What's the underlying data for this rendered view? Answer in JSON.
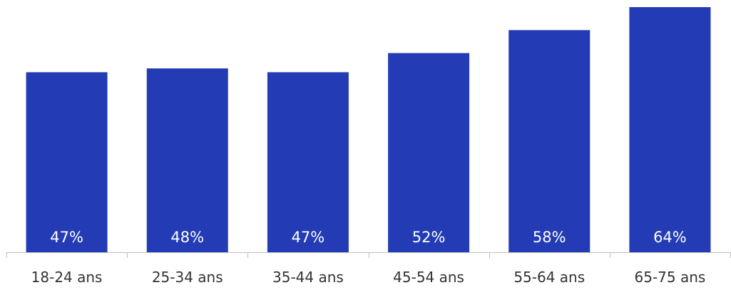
{
  "chart_data": {
    "type": "bar",
    "categories": [
      "18-24 ans",
      "25-34 ans",
      "35-44 ans",
      "45-54 ans",
      "55-64 ans",
      "65-75 ans"
    ],
    "values": [
      47,
      48,
      47,
      52,
      58,
      64
    ],
    "value_labels": [
      "47%",
      "48%",
      "47%",
      "52%",
      "58%",
      "64%"
    ],
    "title": "",
    "xlabel": "",
    "ylabel": "",
    "ylim": [
      0,
      64
    ],
    "grid": false,
    "legend": "none",
    "colors": {
      "bar": "#233BB5",
      "label": "#ffffff",
      "axis": "#bfbfbf",
      "tick_text": "#333333"
    }
  }
}
